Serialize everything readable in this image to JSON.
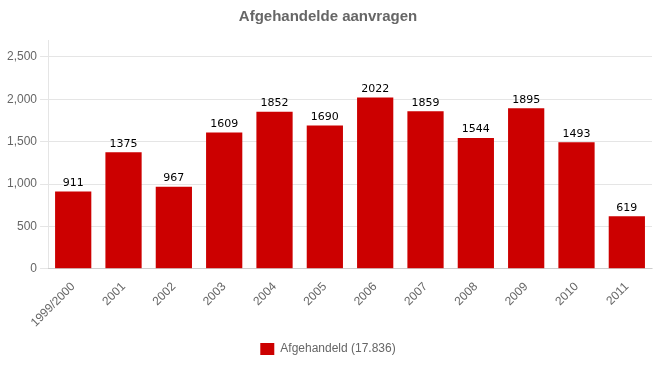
{
  "chart_data": {
    "type": "bar",
    "title": "Afgehandelde aanvragen",
    "categories": [
      "1999/2000",
      "2001",
      "2002",
      "2003",
      "2004",
      "2005",
      "2006",
      "2007",
      "2008",
      "2009",
      "2010",
      "2011"
    ],
    "series": [
      {
        "name": "Afgehandeld (17.836)",
        "color": "#CC0000",
        "values": [
          911,
          1375,
          967,
          1609,
          1852,
          1690,
          2022,
          1859,
          1544,
          1895,
          1493,
          619
        ]
      }
    ],
    "ylim": [
      0,
      2700
    ],
    "yticks": [
      0,
      500,
      1000,
      1500,
      2000,
      2500
    ],
    "grid": true,
    "legend": "bottom",
    "data_labels": true
  }
}
